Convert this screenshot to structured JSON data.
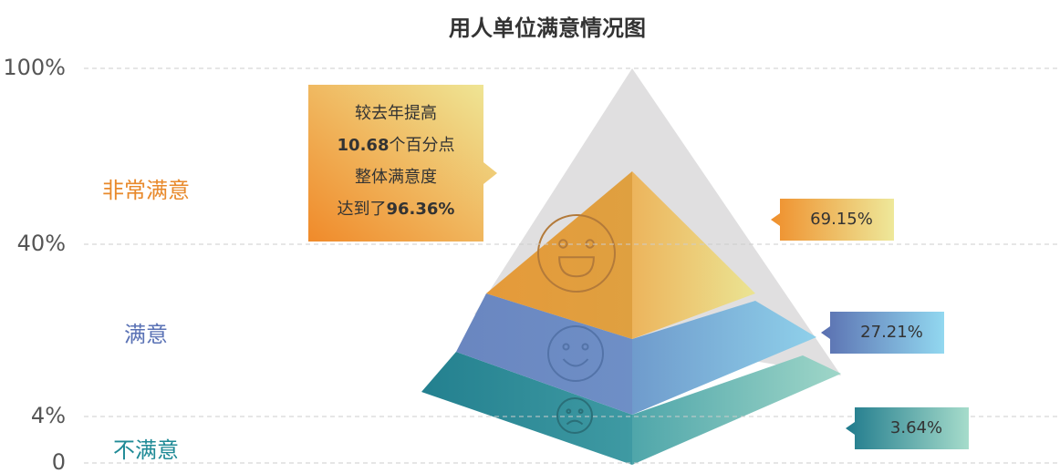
{
  "chart_data": {
    "type": "pyramid",
    "title": "用人单位满意情况图",
    "yticks": [
      {
        "value": 100,
        "label": "100%"
      },
      {
        "value": 40,
        "label": "40%"
      },
      {
        "value": 4,
        "label": "4%"
      },
      0
    ],
    "grid": true,
    "categories": [
      "非常满意",
      "满意",
      "不满意"
    ],
    "values": [
      69.15,
      27.21,
      3.64
    ],
    "value_labels": [
      "69.15%",
      "27.21%",
      "3.64%"
    ],
    "colors": [
      "#e8892b",
      "#5a72b5",
      "#1f8a96"
    ],
    "annotation": [
      [
        "较去年提高"
      ],
      [
        "10.68",
        "个百分点"
      ],
      [
        "整体满意度"
      ],
      [
        "达到了",
        "96.36%"
      ]
    ]
  }
}
